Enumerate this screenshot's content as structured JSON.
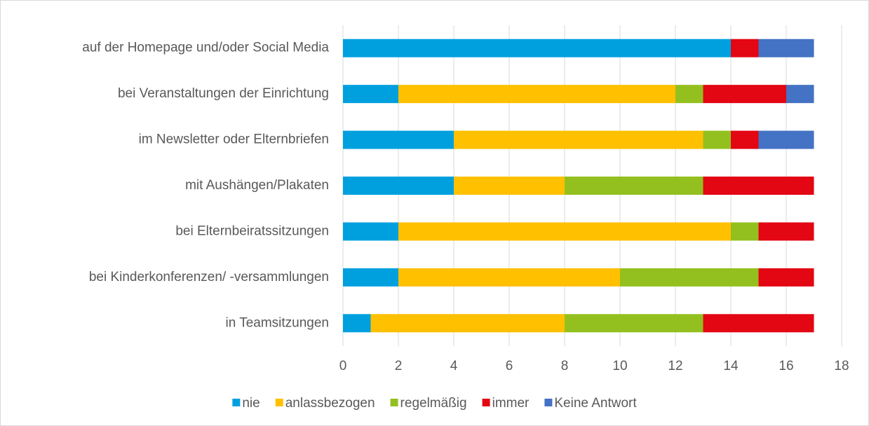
{
  "chart_data": {
    "type": "stacked_barh",
    "categories": [
      "auf der Homepage und/oder Social Media",
      "bei Veranstaltungen der Einrichtung",
      "im Newsletter oder Elternbriefen",
      "mit Aushängen/Plakaten",
      "bei Elternbeiratssitzungen",
      "bei Kinderkonferenzen/ -versammlungen",
      "in Teamsitzungen"
    ],
    "series": [
      {
        "name": "nie",
        "color": "#00a0df",
        "values": [
          14,
          2,
          4,
          4,
          2,
          2,
          1
        ]
      },
      {
        "name": "anlassbezogen",
        "color": "#ffc000",
        "values": [
          0,
          10,
          9,
          4,
          12,
          8,
          7
        ]
      },
      {
        "name": "regelmäßig",
        "color": "#93c01f",
        "values": [
          0,
          1,
          1,
          5,
          1,
          5,
          5
        ]
      },
      {
        "name": "immer",
        "color": "#e30613",
        "values": [
          1,
          3,
          1,
          4,
          2,
          2,
          4
        ]
      },
      {
        "name": "Keine Antwort",
        "color": "#4472c4",
        "values": [
          2,
          1,
          2,
          0,
          0,
          0,
          0
        ]
      }
    ],
    "xlim": [
      0,
      18
    ],
    "xticks": [
      0,
      2,
      4,
      6,
      8,
      10,
      12,
      14,
      16,
      18
    ],
    "grid": true,
    "legend": "bottom"
  }
}
